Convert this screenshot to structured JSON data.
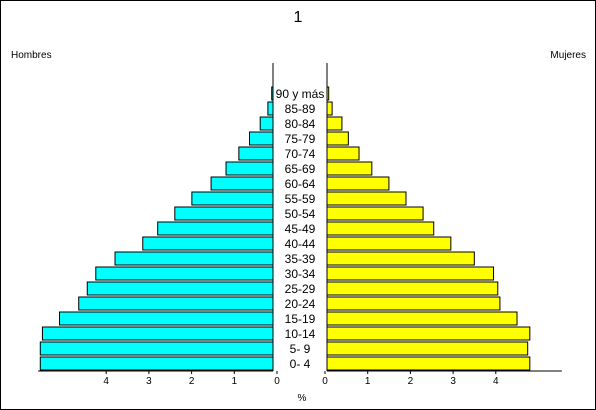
{
  "chart_data": {
    "type": "bar",
    "title": "1",
    "left_label": "Hombres",
    "right_label": "Mujeres",
    "xlabel": "%",
    "categories": [
      "0- 4",
      "5- 9",
      "10-14",
      "15-19",
      "20-24",
      "25-29",
      "30-34",
      "35-39",
      "40-44",
      "45-49",
      "50-54",
      "55-59",
      "60-64",
      "65-69",
      "70-74",
      "75-79",
      "80-84",
      "85-89",
      "90 y más"
    ],
    "series": [
      {
        "name": "Hombres",
        "color": "#00ffff",
        "values": [
          5.45,
          5.45,
          5.4,
          5.0,
          4.55,
          4.35,
          4.15,
          3.7,
          3.05,
          2.7,
          2.3,
          1.9,
          1.45,
          1.1,
          0.8,
          0.55,
          0.3,
          0.12,
          0.03
        ]
      },
      {
        "name": "Mujeres",
        "color": "#ffff00",
        "values": [
          4.75,
          4.7,
          4.75,
          4.45,
          4.05,
          4.0,
          3.9,
          3.45,
          2.9,
          2.5,
          2.25,
          1.85,
          1.45,
          1.05,
          0.75,
          0.5,
          0.35,
          0.12,
          0.04
        ]
      }
    ],
    "x_ticks": [
      "4",
      "3",
      "2",
      "1",
      "0",
      "0",
      "1",
      "2",
      "3",
      "4"
    ],
    "xlim": [
      0,
      5.5
    ],
    "grid": false
  }
}
